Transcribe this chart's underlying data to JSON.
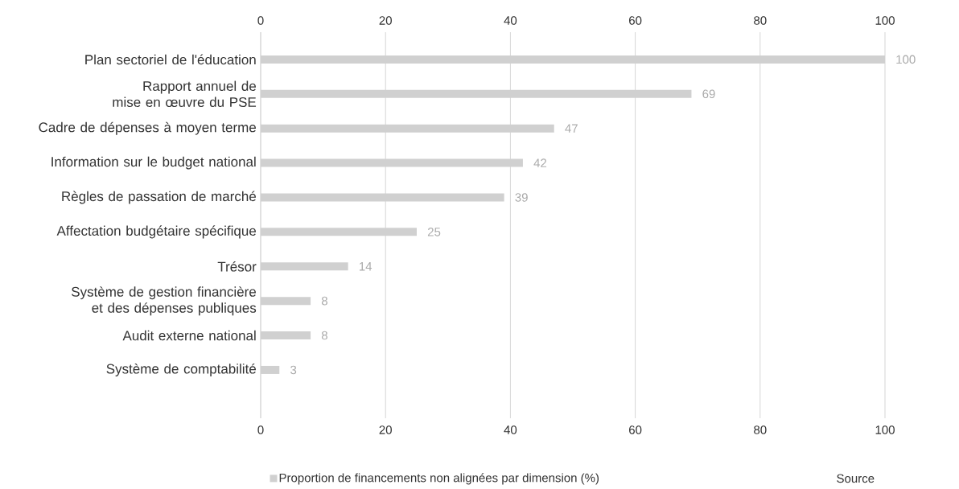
{
  "chart_data": {
    "type": "bar",
    "orientation": "horizontal",
    "categories": [
      "Plan sectoriel de l'éducation",
      "Rapport annuel de mise en œuvre du PSE",
      "Cadre de dépenses à moyen terme",
      "Information sur le budget national",
      "Règles de passation de marché",
      "Affectation budgétaire spécifique",
      "Trésor",
      "Système de gestion financière et des dépenses publiques",
      "Audit externe national",
      "Système de comptabilité"
    ],
    "series": [
      {
        "name": "Proportion de financements non alignées par dimension (%)",
        "color": "#d0d0d0",
        "values": [
          100,
          69,
          47,
          42,
          39,
          25,
          14,
          8,
          8,
          3
        ]
      }
    ],
    "xlim": [
      0,
      100
    ],
    "xticks": [
      0,
      20,
      40,
      60,
      80,
      100
    ],
    "x2lim": [
      0,
      100
    ],
    "x2ticks": [
      0,
      20,
      40,
      60,
      80,
      100
    ],
    "grid": "x",
    "data_labels": true,
    "legend": "bottom",
    "annotations": [
      "Source"
    ]
  }
}
